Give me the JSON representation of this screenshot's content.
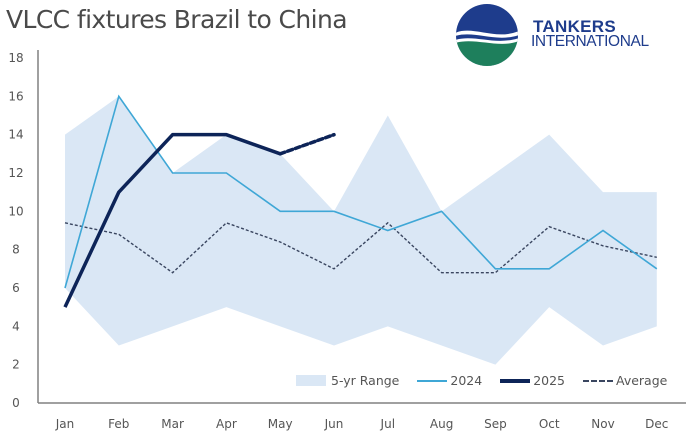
{
  "header": {
    "title": "VLCC fixtures Brazil to China",
    "logo": {
      "line1": "TANKERS",
      "line2": "INTERNATIONAL",
      "colors": {
        "blue": "#1e3c8c",
        "green": "#1e7f5c"
      }
    }
  },
  "legend": {
    "range_label": "5-yr Range",
    "y2024_label": "2024",
    "y2025_label": "2025",
    "average_label": "Average"
  },
  "colors": {
    "range": "#dae7f5",
    "y2024": "#3fa7d6",
    "y2025": "#0d2458",
    "average": "#3a4660",
    "axis": "#808080"
  },
  "chart_data": {
    "type": "line",
    "title": "VLCC fixtures Brazil to China",
    "xlabel": "",
    "ylabel": "",
    "categories": [
      "Jan",
      "Feb",
      "Mar",
      "Apr",
      "May",
      "Jun",
      "Jul",
      "Aug",
      "Sep",
      "Oct",
      "Nov",
      "Dec"
    ],
    "y_ticks": [
      "0",
      "2",
      "4",
      "6",
      "8",
      "10",
      "12",
      "14",
      "16",
      "18"
    ],
    "ylim": [
      0,
      18
    ],
    "grid": false,
    "legend_position": "bottom-right inside",
    "range": {
      "name": "5-yr Range",
      "max": [
        14,
        16,
        12,
        14,
        13,
        10,
        15,
        10,
        12,
        14,
        11,
        11
      ],
      "min": [
        6,
        3,
        4,
        5,
        4,
        3,
        4,
        3,
        2,
        5,
        3,
        4
      ]
    },
    "series": [
      {
        "name": "2024",
        "values": [
          6,
          16,
          12,
          12,
          10,
          10,
          9,
          10,
          7,
          7,
          9,
          7
        ]
      },
      {
        "name": "2025",
        "values": [
          5,
          11,
          14,
          14,
          13,
          14,
          null,
          null,
          null,
          null,
          null,
          null
        ],
        "note": "May to Jun segment dashed (provisional)"
      },
      {
        "name": "Average",
        "values": [
          9.4,
          8.8,
          6.8,
          9.4,
          8.4,
          7.0,
          9.4,
          6.8,
          6.8,
          9.2,
          8.2,
          7.6
        ]
      }
    ]
  }
}
